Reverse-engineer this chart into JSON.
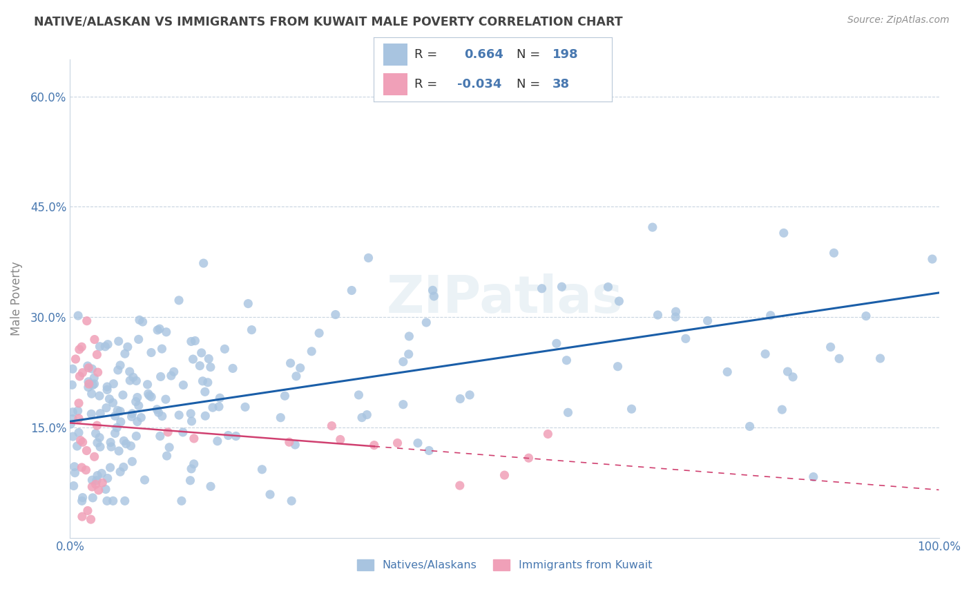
{
  "title": "NATIVE/ALASKAN VS IMMIGRANTS FROM KUWAIT MALE POVERTY CORRELATION CHART",
  "source": "Source: ZipAtlas.com",
  "ylabel": "Male Poverty",
  "xlim": [
    0.0,
    1.0
  ],
  "ylim": [
    0.0,
    0.65
  ],
  "ytick_vals": [
    0.15,
    0.3,
    0.45,
    0.6
  ],
  "ytick_labels": [
    "15.0%",
    "30.0%",
    "45.0%",
    "60.0%"
  ],
  "xtick_vals": [
    0.0,
    0.1,
    0.2,
    0.3,
    0.4,
    0.5,
    0.6,
    0.7,
    0.8,
    0.9,
    1.0
  ],
  "xtick_labels": [
    "0.0%",
    "",
    "",
    "",
    "",
    "",
    "",
    "",
    "",
    "",
    "100.0%"
  ],
  "blue_color": "#a8c4e0",
  "blue_line_color": "#1a5ea8",
  "pink_color": "#f0a0b8",
  "pink_line_color": "#d04070",
  "background_color": "#ffffff",
  "grid_color": "#c8d4e0",
  "title_color": "#444444",
  "label_color": "#6080a0",
  "tick_color": "#4878b0",
  "r1": "0.664",
  "n1": "198",
  "r2": "-0.034",
  "n2": "38",
  "blue_line_x0": 0.0,
  "blue_line_y0": 0.158,
  "blue_line_x1": 1.0,
  "blue_line_y1": 0.333,
  "pink_line_x0": 0.0,
  "pink_line_y0": 0.156,
  "pink_line_x1": 1.0,
  "pink_line_y1": 0.065
}
